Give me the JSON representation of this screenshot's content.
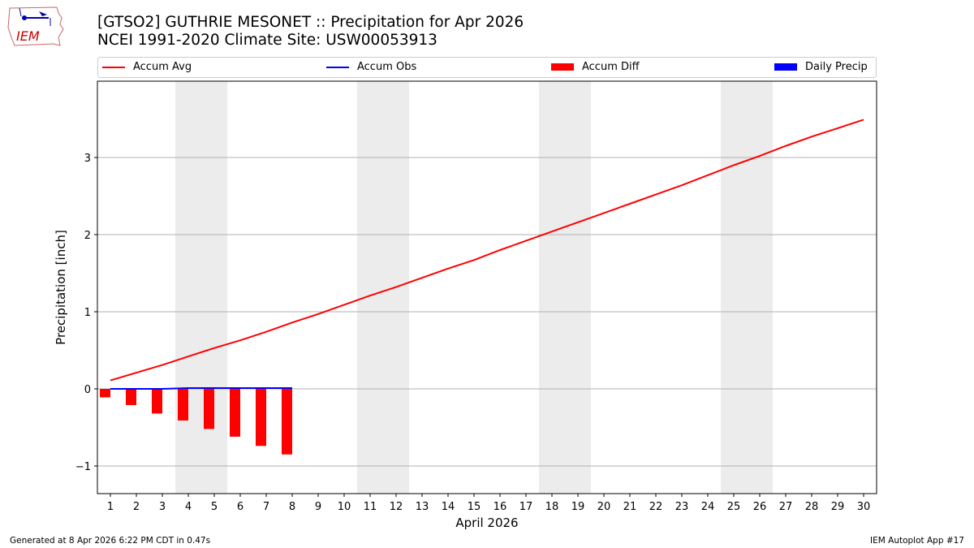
{
  "header": {
    "logo_text": "IEM",
    "title_line1": "[GTSO2] GUTHRIE MESONET :: Precipitation for Apr 2026",
    "title_line2": "NCEI 1991-2020 Climate Site: USW00053913"
  },
  "legend": [
    {
      "label": "Accum Avg",
      "kind": "line",
      "color": "#ff0000"
    },
    {
      "label": "Accum Obs",
      "kind": "line",
      "color": "#0000ff"
    },
    {
      "label": "Accum Diff",
      "kind": "bar",
      "color": "#ff0000"
    },
    {
      "label": "Daily Precip",
      "kind": "bar",
      "color": "#0000ff"
    }
  ],
  "footer": {
    "left": "Generated at 8 Apr 2026 6:22 PM CDT in 0.47s",
    "right": "IEM Autoplot App #17"
  },
  "chart_data": {
    "type": "line",
    "title": "[GTSO2] GUTHRIE MESONET :: Precipitation for Apr 2026",
    "subtitle": "NCEI 1991-2020 Climate Site: USW00053913",
    "xlabel": "April 2026",
    "ylabel": "Precipitation [inch]",
    "ylim": [
      -1.35,
      4.0
    ],
    "yticks": [
      -1,
      0,
      1,
      2,
      3
    ],
    "ytick_labels": [
      "−1",
      "0",
      "1",
      "2",
      "3"
    ],
    "x": [
      1,
      2,
      3,
      4,
      5,
      6,
      7,
      8,
      9,
      10,
      11,
      12,
      13,
      14,
      15,
      16,
      17,
      18,
      19,
      20,
      21,
      22,
      23,
      24,
      25,
      26,
      27,
      28,
      29,
      30
    ],
    "grid": "horizontal",
    "legend_position": "top",
    "weekend_shading": [
      [
        4,
        5
      ],
      [
        11,
        12
      ],
      [
        18,
        19
      ],
      [
        25,
        26
      ]
    ],
    "series": [
      {
        "name": "Accum Avg",
        "type": "line",
        "color": "#ff0000",
        "values": [
          0.11,
          0.21,
          0.31,
          0.42,
          0.53,
          0.63,
          0.74,
          0.86,
          0.97,
          1.09,
          1.21,
          1.32,
          1.44,
          1.56,
          1.67,
          1.8,
          1.92,
          2.04,
          2.16,
          2.28,
          2.4,
          2.52,
          2.64,
          2.77,
          2.9,
          3.02,
          3.15,
          3.27,
          3.38,
          3.49
        ]
      },
      {
        "name": "Accum Obs",
        "type": "line",
        "color": "#0000ff",
        "values": [
          0.0,
          0.0,
          0.0,
          0.01,
          0.01,
          0.01,
          0.01,
          0.01
        ]
      },
      {
        "name": "Accum Diff",
        "type": "bar",
        "color": "#ff0000",
        "values": [
          -0.11,
          -0.21,
          -0.32,
          -0.41,
          -0.52,
          -0.62,
          -0.74,
          -0.85
        ]
      },
      {
        "name": "Daily Precip",
        "type": "bar",
        "color": "#0000ff",
        "values": [
          0,
          0,
          0,
          0,
          0,
          0,
          0,
          0
        ]
      }
    ]
  }
}
